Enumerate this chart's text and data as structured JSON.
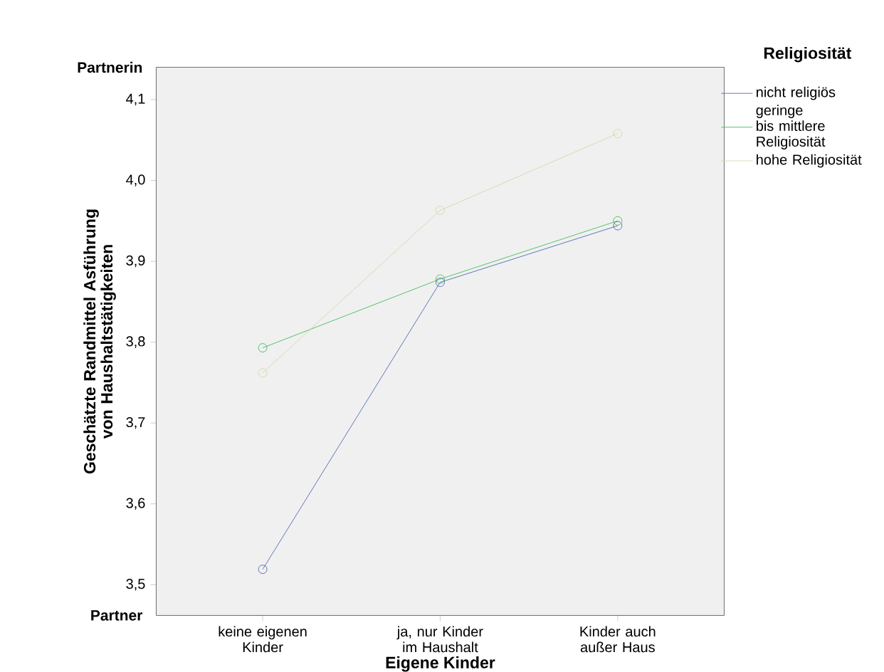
{
  "chart_data": {
    "type": "line",
    "xlabel": "Eigene Kinder",
    "ylabel": "Geschätzte Randmittel Asführung von Haushaltstätigkeiten",
    "legend_title": "Religiosität",
    "legend": "right",
    "marker": "circle",
    "line_style": "solid",
    "categories": [
      "keine eigenen Kinder",
      "ja, nur Kinder im Haushalt",
      "Kinder auch außer Haus"
    ],
    "ylim": [
      3.462,
      4.14
    ],
    "yticks": [
      {
        "value": 3.5,
        "label": "3,5"
      },
      {
        "value": 3.6,
        "label": "3,6"
      },
      {
        "value": 3.7,
        "label": "3,7"
      },
      {
        "value": 3.8,
        "label": "3,8"
      },
      {
        "value": 3.9,
        "label": "3,9"
      },
      {
        "value": 4.0,
        "label": "4,0"
      },
      {
        "value": 4.1,
        "label": "4,1"
      }
    ],
    "series": [
      {
        "name": "nicht religiös",
        "color": "#3e58ac",
        "values": [
          3.519,
          3.874,
          3.944
        ]
      },
      {
        "name": "geringe bis mittlere Religiosität",
        "color": "#2eb84a",
        "values": [
          3.793,
          3.878,
          3.95
        ]
      },
      {
        "name": "hohe Religiosität",
        "color": "#d6d3a0",
        "values": [
          3.762,
          3.963,
          4.058
        ]
      }
    ],
    "annotations": [
      "Partnerin",
      "Partner"
    ]
  }
}
